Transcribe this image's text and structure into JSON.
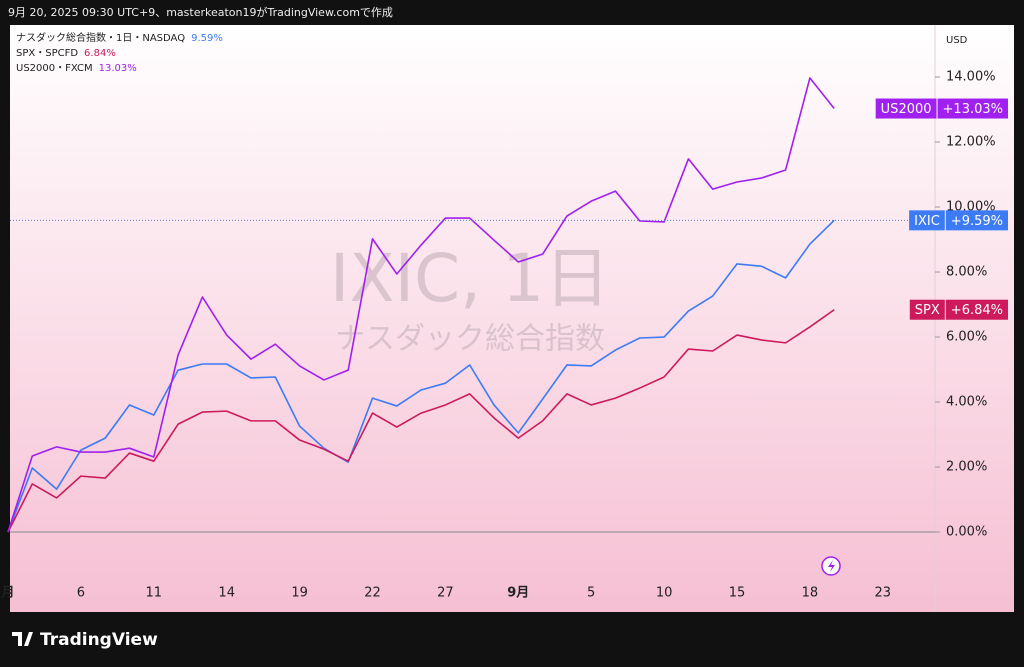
{
  "header": "9月 20, 2025 09:30 UTC+9、masterkeaton19がTradingView.comで作成",
  "brand": "TradingView",
  "chart_data": {
    "type": "line",
    "watermark": "IXIC, 1日",
    "watermark_subtitle": "ナスダック総合指数",
    "currency": "USD",
    "categories": [
      "月",
      null,
      null,
      "6",
      null,
      null,
      "11",
      null,
      null,
      "14",
      null,
      null,
      "19",
      null,
      null,
      "22",
      null,
      null,
      "27",
      null,
      null,
      "9月",
      null,
      null,
      "5",
      null,
      null,
      "10",
      null,
      null,
      "15",
      null,
      null,
      "18",
      null,
      null,
      "23"
    ],
    "ylim": [
      -2.46,
      15.6
    ],
    "yticks": [
      {
        "value": 0,
        "label": "0.00%"
      },
      {
        "value": 2,
        "label": "2.00%"
      },
      {
        "value": 4,
        "label": "4.00%"
      },
      {
        "value": 6,
        "label": "6.00%"
      },
      {
        "value": 8,
        "label": "8.00%"
      },
      {
        "value": 10,
        "label": "10.00%"
      },
      {
        "value": 12,
        "label": "12.00%"
      },
      {
        "value": 14,
        "label": "14.00%"
      }
    ],
    "series": [
      {
        "name": "ナスダック総合指数・1日・NASDAQ",
        "legend_value": "9.59%",
        "symbol": "IXIC",
        "badge_value": "+9.59%",
        "color": "#3d7bf5",
        "values": [
          0,
          1.97,
          1.32,
          2.52,
          2.89,
          3.91,
          3.6,
          4.98,
          5.17,
          5.17,
          4.74,
          4.77,
          3.26,
          2.58,
          2.15,
          4.12,
          3.88,
          4.37,
          4.58,
          5.14,
          3.91,
          3.05,
          4.09,
          5.14,
          5.11,
          5.6,
          5.97,
          6.0,
          6.8,
          7.26,
          8.25,
          8.18,
          7.82,
          8.86,
          9.59,
          null,
          null
        ]
      },
      {
        "name": "SPX・SPCFD",
        "legend_value": "6.84%",
        "symbol": "SPX",
        "badge_value": "+6.84%",
        "color": "#cc1a5c",
        "values": [
          0,
          1.48,
          1.05,
          1.72,
          1.66,
          2.43,
          2.18,
          3.32,
          3.69,
          3.72,
          3.42,
          3.42,
          2.83,
          2.55,
          2.18,
          3.66,
          3.23,
          3.66,
          3.91,
          4.25,
          3.51,
          2.89,
          3.42,
          4.25,
          3.91,
          4.12,
          4.43,
          4.77,
          5.63,
          5.57,
          6.06,
          5.91,
          5.82,
          6.31,
          6.84,
          null,
          null
        ]
      },
      {
        "name": "US2000・FXCM",
        "legend_value": "13.03%",
        "symbol": "US2000",
        "badge_value": "+13.03%",
        "color": "#a020f0",
        "values": [
          0,
          2.34,
          2.62,
          2.46,
          2.46,
          2.58,
          2.31,
          5.45,
          7.23,
          6.06,
          5.32,
          5.78,
          5.11,
          4.68,
          4.98,
          9.02,
          7.94,
          8.83,
          9.66,
          9.66,
          8.98,
          8.31,
          8.55,
          9.72,
          10.18,
          10.49,
          9.57,
          9.54,
          11.48,
          10.55,
          10.77,
          10.89,
          11.14,
          13.97,
          13.03,
          null,
          null
        ]
      }
    ]
  }
}
